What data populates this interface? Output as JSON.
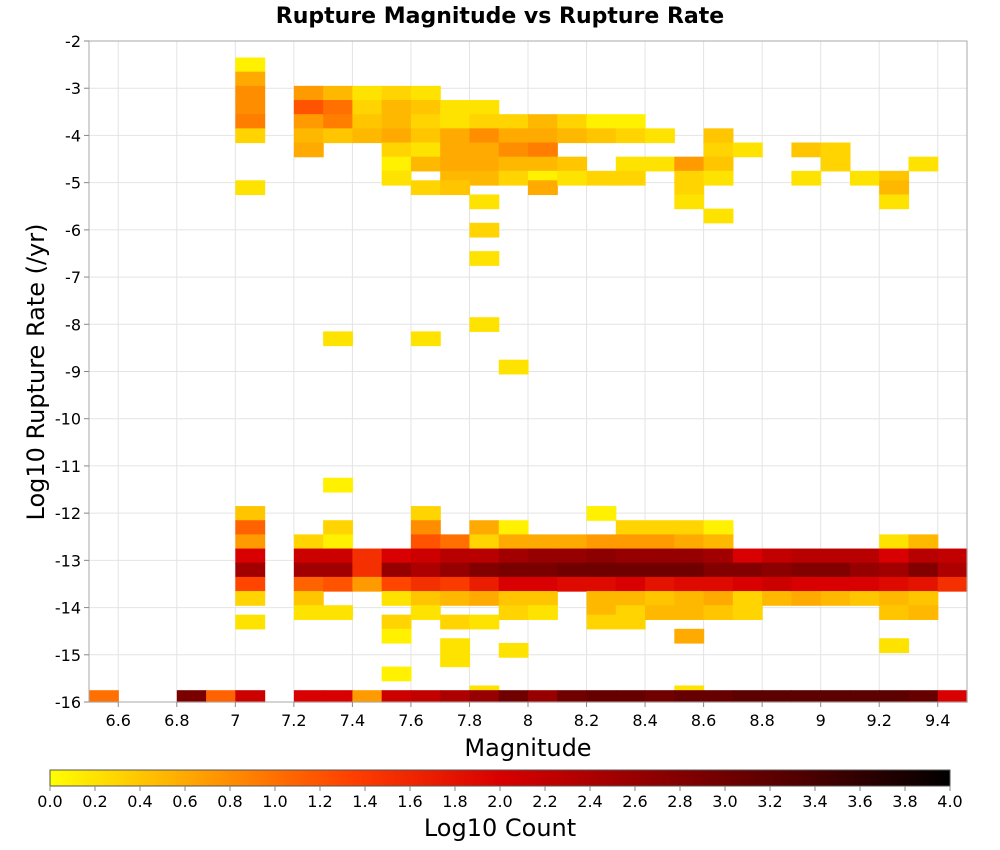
{
  "chart_data": {
    "type": "heatmap",
    "title": "Rupture Magnitude vs Rupture Rate",
    "xlabel": "Magnitude",
    "ylabel": "Log10 Rupture Rate (/yr)",
    "xlim": [
      6.5,
      9.5
    ],
    "ylim": [
      -16,
      -2
    ],
    "x_ticks": [
      "6.6",
      "6.8",
      "7",
      "7.2",
      "7.4",
      "7.6",
      "7.8",
      "8",
      "8.2",
      "8.4",
      "8.6",
      "8.8",
      "9",
      "9.2",
      "9.4"
    ],
    "y_ticks": [
      "-2",
      "-3",
      "-4",
      "-5",
      "-6",
      "-7",
      "-8",
      "-9",
      "-10",
      "-11",
      "-12",
      "-13",
      "-14",
      "-15",
      "-16"
    ],
    "x_bin_width": 0.1,
    "y_bin_height": 0.3,
    "colorbar": {
      "label": "Log10 Count",
      "min": 0.0,
      "max": 4.0,
      "ticks": [
        "0.0",
        "0.2",
        "0.4",
        "0.6",
        "0.8",
        "1.0",
        "1.2",
        "1.4",
        "1.6",
        "1.8",
        "2.0",
        "2.2",
        "2.4",
        "2.6",
        "2.8",
        "3.0",
        "3.2",
        "3.4",
        "3.6",
        "3.8",
        "4.0"
      ],
      "stops": [
        "#ffff00",
        "#ffa000",
        "#ff4000",
        "#d80000",
        "#900000",
        "#500000",
        "#000000"
      ]
    },
    "cells": [
      [
        7.05,
        -2.5,
        0.1
      ],
      [
        7.05,
        -2.8,
        0.6
      ],
      [
        7.05,
        -3.1,
        0.8
      ],
      [
        7.05,
        -3.4,
        0.8
      ],
      [
        7.05,
        -3.7,
        0.9
      ],
      [
        7.05,
        -4.0,
        0.3
      ],
      [
        7.05,
        -5.1,
        0.2
      ],
      [
        7.25,
        -3.1,
        0.7
      ],
      [
        7.25,
        -3.4,
        1.2
      ],
      [
        7.25,
        -3.7,
        0.7
      ],
      [
        7.25,
        -4.0,
        0.5
      ],
      [
        7.25,
        -4.3,
        0.6
      ],
      [
        7.35,
        -3.1,
        0.5
      ],
      [
        7.35,
        -3.4,
        1.0
      ],
      [
        7.35,
        -3.7,
        0.9
      ],
      [
        7.35,
        -4.0,
        0.4
      ],
      [
        7.45,
        -3.1,
        0.2
      ],
      [
        7.45,
        -3.4,
        0.3
      ],
      [
        7.45,
        -3.7,
        0.4
      ],
      [
        7.45,
        -4.0,
        0.5
      ],
      [
        7.55,
        -3.1,
        0.3
      ],
      [
        7.55,
        -3.4,
        0.5
      ],
      [
        7.55,
        -3.7,
        0.5
      ],
      [
        7.55,
        -4.0,
        0.6
      ],
      [
        7.55,
        -4.3,
        0.3
      ],
      [
        7.55,
        -4.6,
        0.1
      ],
      [
        7.55,
        -4.9,
        0.2
      ],
      [
        7.65,
        -3.1,
        0.2
      ],
      [
        7.65,
        -3.4,
        0.4
      ],
      [
        7.65,
        -3.7,
        0.3
      ],
      [
        7.65,
        -4.0,
        0.4
      ],
      [
        7.65,
        -4.3,
        0.2
      ],
      [
        7.65,
        -4.6,
        0.5
      ],
      [
        7.65,
        -5.1,
        0.3
      ],
      [
        7.75,
        -3.4,
        0.2
      ],
      [
        7.75,
        -3.7,
        0.2
      ],
      [
        7.75,
        -4.0,
        0.6
      ],
      [
        7.75,
        -4.3,
        0.6
      ],
      [
        7.75,
        -4.6,
        0.6
      ],
      [
        7.75,
        -4.9,
        0.5
      ],
      [
        7.75,
        -5.1,
        0.4
      ],
      [
        7.85,
        -3.4,
        0.2
      ],
      [
        7.85,
        -3.7,
        0.3
      ],
      [
        7.85,
        -4.0,
        0.8
      ],
      [
        7.85,
        -4.3,
        0.6
      ],
      [
        7.85,
        -4.6,
        0.6
      ],
      [
        7.85,
        -4.9,
        0.5
      ],
      [
        7.85,
        -5.4,
        0.2
      ],
      [
        7.85,
        -6.0,
        0.3
      ],
      [
        7.85,
        -6.6,
        0.2
      ],
      [
        7.95,
        -3.7,
        0.3
      ],
      [
        7.95,
        -4.0,
        0.6
      ],
      [
        7.95,
        -4.3,
        0.8
      ],
      [
        7.95,
        -4.6,
        0.5
      ],
      [
        7.95,
        -4.9,
        0.3
      ],
      [
        8.05,
        -3.7,
        0.5
      ],
      [
        8.05,
        -4.0,
        0.6
      ],
      [
        8.05,
        -4.3,
        0.9
      ],
      [
        8.05,
        -4.6,
        0.5
      ],
      [
        8.05,
        -4.9,
        0.1
      ],
      [
        8.05,
        -5.1,
        0.6
      ],
      [
        8.15,
        -3.7,
        0.3
      ],
      [
        8.15,
        -4.0,
        0.5
      ],
      [
        8.15,
        -4.6,
        0.4
      ],
      [
        8.15,
        -4.9,
        0.2
      ],
      [
        8.25,
        -3.7,
        0.1
      ],
      [
        8.25,
        -4.0,
        0.4
      ],
      [
        8.25,
        -4.9,
        0.3
      ],
      [
        8.35,
        -3.7,
        0.1
      ],
      [
        8.35,
        -4.0,
        0.3
      ],
      [
        8.35,
        -4.6,
        0.2
      ],
      [
        8.35,
        -4.9,
        0.3
      ],
      [
        8.45,
        -4.0,
        0.2
      ],
      [
        8.45,
        -4.6,
        0.2
      ],
      [
        8.55,
        -4.6,
        0.7
      ],
      [
        8.55,
        -4.9,
        0.3
      ],
      [
        8.55,
        -5.1,
        0.3
      ],
      [
        8.55,
        -5.4,
        0.2
      ],
      [
        8.65,
        -4.0,
        0.4
      ],
      [
        8.65,
        -4.3,
        0.3
      ],
      [
        8.65,
        -4.6,
        0.4
      ],
      [
        8.65,
        -4.9,
        0.2
      ],
      [
        8.65,
        -5.7,
        0.2
      ],
      [
        8.75,
        -4.3,
        0.2
      ],
      [
        8.95,
        -4.3,
        0.4
      ],
      [
        8.95,
        -4.9,
        0.2
      ],
      [
        9.05,
        -4.3,
        0.3
      ],
      [
        9.05,
        -4.6,
        0.3
      ],
      [
        9.15,
        -4.9,
        0.2
      ],
      [
        9.25,
        -4.9,
        0.4
      ],
      [
        9.25,
        -5.1,
        0.5
      ],
      [
        9.25,
        -5.4,
        0.2
      ],
      [
        9.35,
        -4.6,
        0.2
      ],
      [
        7.35,
        -8.3,
        0.2
      ],
      [
        7.65,
        -8.3,
        0.2
      ],
      [
        7.85,
        -8.0,
        0.2
      ],
      [
        7.95,
        -8.9,
        0.2
      ],
      [
        7.35,
        -11.4,
        0.1
      ],
      [
        7.05,
        -12.0,
        0.4
      ],
      [
        7.05,
        -12.3,
        1.1
      ],
      [
        7.05,
        -12.6,
        0.7
      ],
      [
        7.05,
        -12.9,
        2.0
      ],
      [
        7.05,
        -13.2,
        2.5
      ],
      [
        7.05,
        -13.5,
        1.3
      ],
      [
        7.05,
        -13.8,
        0.3
      ],
      [
        7.05,
        -14.3,
        0.2
      ],
      [
        7.25,
        -12.6,
        0.3
      ],
      [
        7.25,
        -12.9,
        2.1
      ],
      [
        7.25,
        -13.2,
        2.5
      ],
      [
        7.25,
        -13.5,
        1.1
      ],
      [
        7.25,
        -13.8,
        0.4
      ],
      [
        7.25,
        -14.1,
        0.2
      ],
      [
        7.35,
        -12.3,
        0.3
      ],
      [
        7.35,
        -12.6,
        0.1
      ],
      [
        7.35,
        -12.9,
        2.1
      ],
      [
        7.35,
        -13.2,
        2.5
      ],
      [
        7.35,
        -13.5,
        1.2
      ],
      [
        7.35,
        -14.1,
        0.2
      ],
      [
        7.45,
        -12.9,
        1.5
      ],
      [
        7.45,
        -13.2,
        1.5
      ],
      [
        7.45,
        -13.5,
        0.7
      ],
      [
        7.55,
        -12.9,
        2.0
      ],
      [
        7.55,
        -13.2,
        2.6
      ],
      [
        7.55,
        -13.5,
        1.3
      ],
      [
        7.55,
        -13.8,
        0.2
      ],
      [
        7.55,
        -14.3,
        0.3
      ],
      [
        7.55,
        -14.6,
        0.1
      ],
      [
        7.55,
        -15.4,
        0.1
      ],
      [
        7.65,
        -12.0,
        0.3
      ],
      [
        7.65,
        -12.3,
        0.8
      ],
      [
        7.65,
        -12.6,
        1.2
      ],
      [
        7.65,
        -12.9,
        2.1
      ],
      [
        7.65,
        -13.2,
        2.4
      ],
      [
        7.65,
        -13.5,
        1.5
      ],
      [
        7.65,
        -13.8,
        0.4
      ],
      [
        7.65,
        -14.1,
        0.2
      ],
      [
        7.75,
        -12.6,
        1.0
      ],
      [
        7.75,
        -12.9,
        2.3
      ],
      [
        7.75,
        -13.2,
        2.6
      ],
      [
        7.75,
        -13.5,
        1.4
      ],
      [
        7.75,
        -13.8,
        0.5
      ],
      [
        7.75,
        -14.3,
        0.3
      ],
      [
        7.75,
        -14.8,
        0.2
      ],
      [
        7.75,
        -15.1,
        0.2
      ],
      [
        7.85,
        -12.3,
        0.6
      ],
      [
        7.85,
        -12.6,
        0.3
      ],
      [
        7.85,
        -12.9,
        2.3
      ],
      [
        7.85,
        -13.2,
        2.8
      ],
      [
        7.85,
        -13.5,
        1.7
      ],
      [
        7.85,
        -13.8,
        0.6
      ],
      [
        7.85,
        -14.3,
        0.2
      ],
      [
        7.85,
        -15.8,
        0.2
      ],
      [
        7.95,
        -12.3,
        0.1
      ],
      [
        7.95,
        -12.6,
        0.6
      ],
      [
        7.95,
        -12.9,
        2.5
      ],
      [
        7.95,
        -13.2,
        2.9
      ],
      [
        7.95,
        -13.5,
        2.0
      ],
      [
        7.95,
        -13.8,
        0.4
      ],
      [
        7.95,
        -14.1,
        0.3
      ],
      [
        7.95,
        -14.9,
        0.2
      ],
      [
        8.05,
        -12.6,
        0.6
      ],
      [
        8.05,
        -12.9,
        2.6
      ],
      [
        8.05,
        -13.2,
        2.9
      ],
      [
        8.05,
        -13.5,
        2.0
      ],
      [
        8.05,
        -13.8,
        0.4
      ],
      [
        8.05,
        -14.1,
        0.2
      ],
      [
        8.15,
        -12.6,
        0.6
      ],
      [
        8.15,
        -12.9,
        2.6
      ],
      [
        8.15,
        -13.2,
        3.0
      ],
      [
        8.15,
        -13.5,
        1.9
      ],
      [
        8.25,
        -12.0,
        0.1
      ],
      [
        8.25,
        -12.6,
        0.7
      ],
      [
        8.25,
        -12.9,
        2.7
      ],
      [
        8.25,
        -13.2,
        3.0
      ],
      [
        8.25,
        -13.5,
        1.9
      ],
      [
        8.25,
        -13.8,
        0.5
      ],
      [
        8.25,
        -14.1,
        0.5
      ],
      [
        8.25,
        -14.3,
        0.3
      ],
      [
        8.35,
        -12.3,
        0.3
      ],
      [
        8.35,
        -12.6,
        0.7
      ],
      [
        8.35,
        -12.9,
        2.6
      ],
      [
        8.35,
        -13.2,
        3.0
      ],
      [
        8.35,
        -13.5,
        2.0
      ],
      [
        8.35,
        -13.8,
        0.5
      ],
      [
        8.35,
        -14.1,
        0.3
      ],
      [
        8.35,
        -14.3,
        0.3
      ],
      [
        8.45,
        -12.3,
        0.3
      ],
      [
        8.45,
        -12.6,
        0.7
      ],
      [
        8.45,
        -12.9,
        2.6
      ],
      [
        8.45,
        -13.2,
        3.0
      ],
      [
        8.45,
        -13.5,
        1.8
      ],
      [
        8.45,
        -13.8,
        0.4
      ],
      [
        8.45,
        -14.1,
        0.5
      ],
      [
        8.55,
        -12.3,
        0.3
      ],
      [
        8.55,
        -12.6,
        0.6
      ],
      [
        8.55,
        -12.9,
        2.6
      ],
      [
        8.55,
        -13.2,
        3.0
      ],
      [
        8.55,
        -13.5,
        1.9
      ],
      [
        8.55,
        -13.8,
        0.5
      ],
      [
        8.55,
        -14.1,
        0.5
      ],
      [
        8.55,
        -14.6,
        0.6
      ],
      [
        8.55,
        -15.8,
        0.2
      ],
      [
        8.65,
        -12.3,
        0.1
      ],
      [
        8.65,
        -12.6,
        0.5
      ],
      [
        8.65,
        -12.9,
        2.5
      ],
      [
        8.65,
        -13.2,
        2.8
      ],
      [
        8.65,
        -13.5,
        1.9
      ],
      [
        8.65,
        -13.8,
        0.6
      ],
      [
        8.65,
        -14.1,
        0.4
      ],
      [
        8.75,
        -12.9,
        2.0
      ],
      [
        8.75,
        -13.2,
        2.8
      ],
      [
        8.75,
        -13.5,
        2.0
      ],
      [
        8.75,
        -13.8,
        0.3
      ],
      [
        8.75,
        -14.1,
        0.3
      ],
      [
        8.85,
        -12.9,
        2.2
      ],
      [
        8.85,
        -13.2,
        2.7
      ],
      [
        8.85,
        -13.5,
        2.1
      ],
      [
        8.85,
        -13.8,
        0.5
      ],
      [
        8.95,
        -12.9,
        2.3
      ],
      [
        8.95,
        -13.2,
        2.8
      ],
      [
        8.95,
        -13.5,
        2.0
      ],
      [
        8.95,
        -13.8,
        0.6
      ],
      [
        9.05,
        -12.9,
        2.3
      ],
      [
        9.05,
        -13.2,
        2.8
      ],
      [
        9.05,
        -13.5,
        2.0
      ],
      [
        9.05,
        -13.8,
        0.5
      ],
      [
        9.15,
        -12.9,
        2.3
      ],
      [
        9.15,
        -13.2,
        2.6
      ],
      [
        9.15,
        -13.5,
        2.0
      ],
      [
        9.15,
        -13.8,
        0.4
      ],
      [
        9.25,
        -12.6,
        0.2
      ],
      [
        9.25,
        -12.9,
        2.0
      ],
      [
        9.25,
        -13.2,
        2.5
      ],
      [
        9.25,
        -13.5,
        1.9
      ],
      [
        9.25,
        -13.8,
        0.5
      ],
      [
        9.25,
        -14.1,
        0.4
      ],
      [
        9.25,
        -14.8,
        0.2
      ],
      [
        9.35,
        -12.6,
        0.5
      ],
      [
        9.35,
        -12.9,
        2.3
      ],
      [
        9.35,
        -13.2,
        2.8
      ],
      [
        9.35,
        -13.5,
        1.8
      ],
      [
        9.35,
        -13.8,
        0.4
      ],
      [
        9.35,
        -14.1,
        0.5
      ],
      [
        9.45,
        -12.9,
        2.2
      ],
      [
        9.45,
        -13.2,
        2.4
      ],
      [
        9.45,
        -13.5,
        1.5
      ],
      [
        6.55,
        -15.9,
        1.0
      ],
      [
        6.85,
        -15.9,
        2.9
      ],
      [
        6.95,
        -15.9,
        1.1
      ],
      [
        7.05,
        -15.9,
        2.1
      ],
      [
        7.25,
        -15.9,
        2.0
      ],
      [
        7.35,
        -15.9,
        2.0
      ],
      [
        7.45,
        -15.9,
        0.7
      ],
      [
        7.55,
        -15.9,
        2.1
      ],
      [
        7.65,
        -15.9,
        2.2
      ],
      [
        7.75,
        -15.9,
        2.4
      ],
      [
        7.85,
        -15.9,
        2.6
      ],
      [
        7.95,
        -15.9,
        3.0
      ],
      [
        8.05,
        -15.9,
        2.6
      ],
      [
        8.15,
        -15.9,
        3.0
      ],
      [
        8.25,
        -15.9,
        3.1
      ],
      [
        8.35,
        -15.9,
        3.1
      ],
      [
        8.45,
        -15.9,
        3.0
      ],
      [
        8.55,
        -15.9,
        3.1
      ],
      [
        8.65,
        -15.9,
        3.1
      ],
      [
        8.75,
        -15.9,
        3.2
      ],
      [
        8.85,
        -15.9,
        3.2
      ],
      [
        8.95,
        -15.9,
        3.2
      ],
      [
        9.05,
        -15.9,
        3.2
      ],
      [
        9.15,
        -15.9,
        3.2
      ],
      [
        9.25,
        -15.9,
        3.2
      ],
      [
        9.35,
        -15.9,
        3.1
      ],
      [
        9.45,
        -15.9,
        2.0
      ]
    ]
  }
}
